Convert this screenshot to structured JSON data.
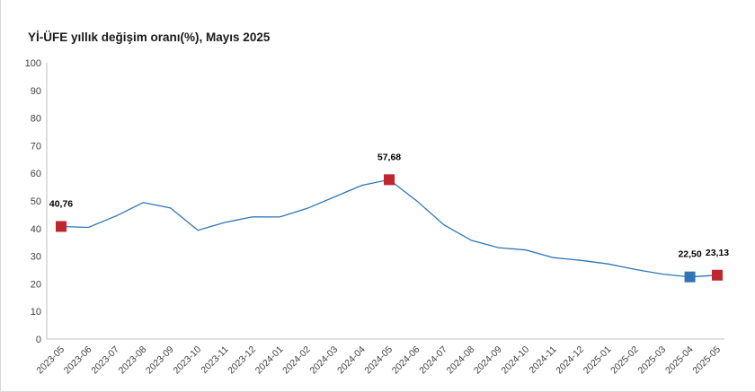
{
  "chart_data": {
    "type": "line",
    "title": "Yİ-ÜFE yıllık değişim oranı(%), Mayıs 2025",
    "xlabel": "",
    "ylabel": "",
    "ylim": [
      0,
      100
    ],
    "yticks": [
      "0",
      "10",
      "20",
      "30",
      "40",
      "50",
      "60",
      "70",
      "80",
      "90",
      "100"
    ],
    "grid": false,
    "x": [
      "2023-05",
      "2023-06",
      "2023-07",
      "2023-08",
      "2023-09",
      "2023-10",
      "2023-11",
      "2023-12",
      "2024-01",
      "2024-02",
      "2024-03",
      "2024-04",
      "2024-05",
      "2024-06",
      "2024-07",
      "2024-08",
      "2024-09",
      "2024-10",
      "2024-11",
      "2024-12",
      "2025-01",
      "2025-02",
      "2025-03",
      "2025-04",
      "2025-05"
    ],
    "series": [
      {
        "name": "",
        "color": "#2e75b6",
        "values": [
          40.76,
          40.42,
          44.5,
          49.41,
          47.44,
          39.39,
          42.25,
          44.22,
          44.2,
          47.29,
          51.47,
          55.66,
          57.68,
          50.09,
          41.37,
          35.75,
          33.09,
          32.24,
          29.47,
          28.52,
          27.2,
          25.21,
          23.5,
          22.5,
          23.13
        ]
      }
    ],
    "highlighted_points": [
      {
        "index": 0,
        "label": "40,76",
        "color": "#c0262e"
      },
      {
        "index": 12,
        "label": "57,68",
        "color": "#c0262e"
      },
      {
        "index": 23,
        "label": "22,50",
        "color": "#2e75b6"
      },
      {
        "index": 24,
        "label": "23,13",
        "color": "#c0262e"
      }
    ]
  }
}
